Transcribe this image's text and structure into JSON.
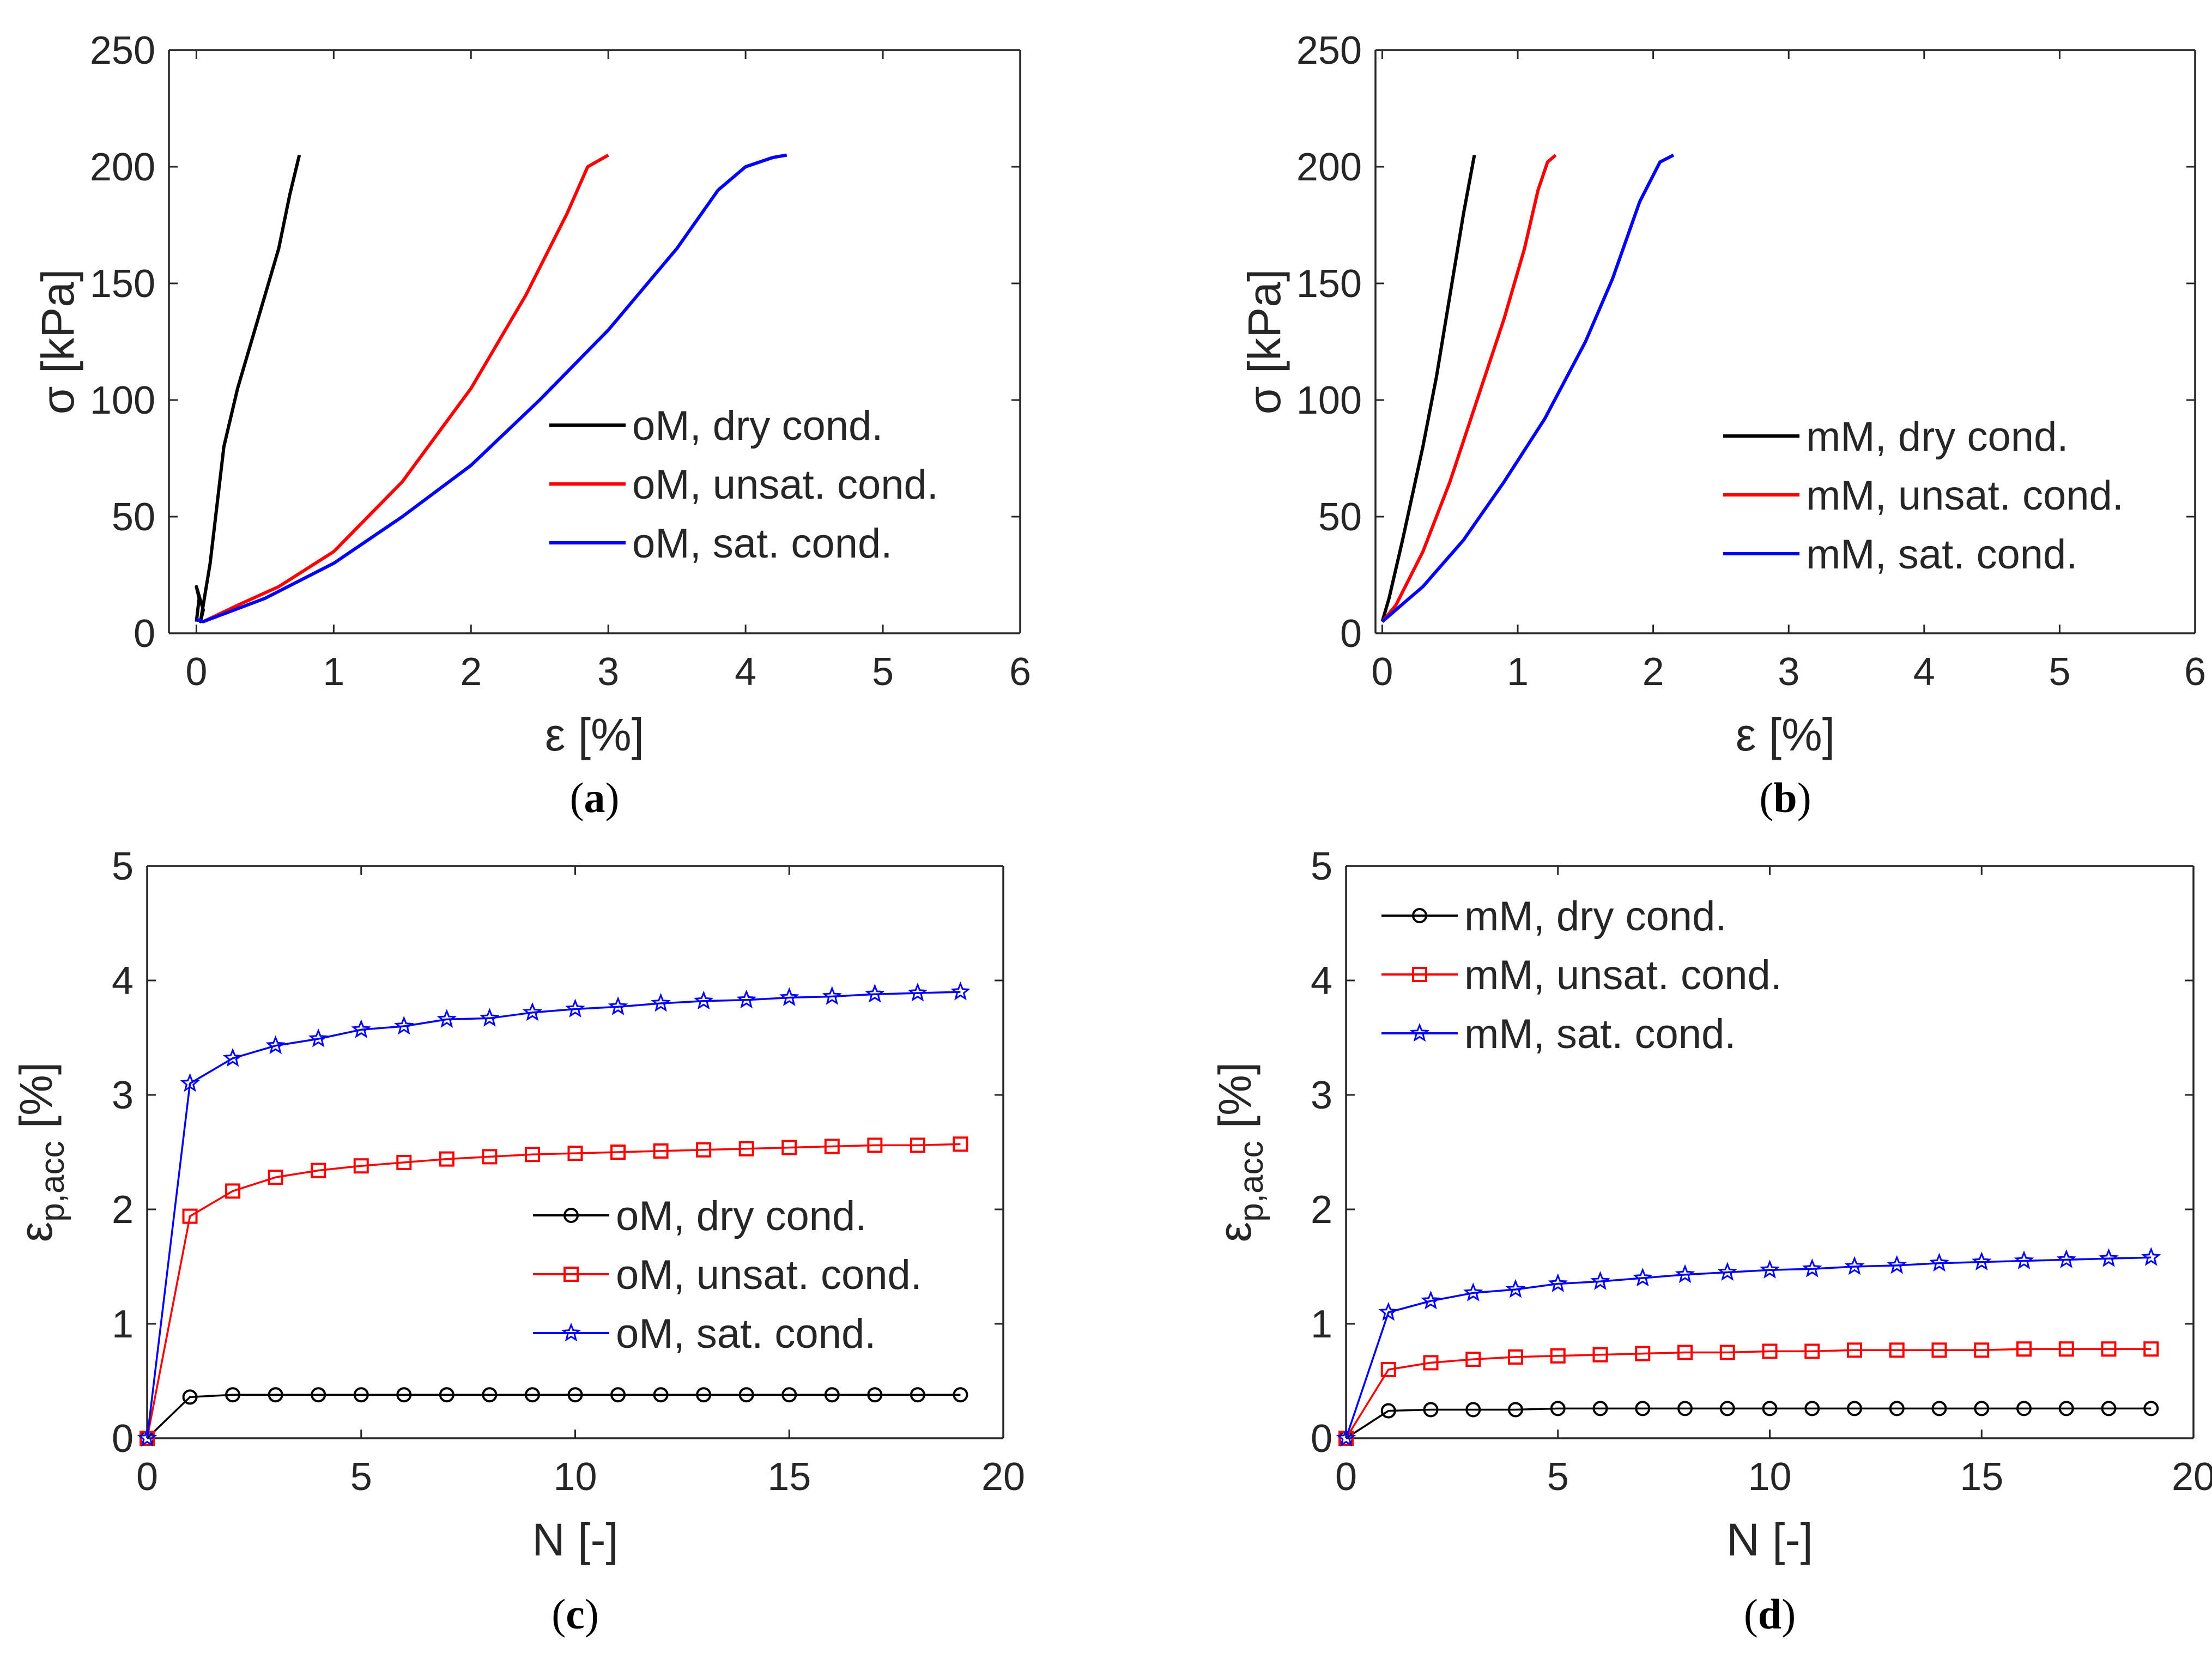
{
  "chart_data": [
    {
      "id": "a",
      "type": "line",
      "caption_letter": "a",
      "xlabel": "ε [%]",
      "ylabel": "σ [kPa]",
      "xlim": [
        -0.2,
        6
      ],
      "ylim": [
        0,
        250
      ],
      "xticks": [
        0,
        1,
        2,
        3,
        4,
        5,
        6
      ],
      "yticks": [
        0,
        50,
        100,
        150,
        200,
        250
      ],
      "legend_position": "right-middle",
      "series": [
        {
          "name": "oM, dry cond.",
          "color": "#000000",
          "marker": "none",
          "x": [
            0.0,
            0.02,
            0.0,
            0.05,
            0.03,
            0.1,
            0.15,
            0.2,
            0.3,
            0.4,
            0.5,
            0.6,
            0.68,
            0.75
          ],
          "y": [
            5,
            15,
            20,
            10,
            5,
            30,
            55,
            80,
            105,
            125,
            145,
            165,
            188,
            205
          ]
        },
        {
          "name": "oM, unsat. cond.",
          "color": "#ff0000",
          "marker": "none",
          "x": [
            0.0,
            0.05,
            0.3,
            0.6,
            1.0,
            1.5,
            2.0,
            2.4,
            2.7,
            2.85,
            3.0
          ],
          "y": [
            6,
            5,
            12,
            20,
            35,
            65,
            105,
            145,
            180,
            200,
            205
          ]
        },
        {
          "name": "oM, sat. cond.",
          "color": "#0000ff",
          "marker": "none",
          "x": [
            0.0,
            0.05,
            0.5,
            1.0,
            1.5,
            2.0,
            2.5,
            3.0,
            3.5,
            3.8,
            4.0,
            4.2,
            4.3
          ],
          "y": [
            6,
            5,
            15,
            30,
            50,
            72,
            100,
            130,
            165,
            190,
            200,
            204,
            205
          ]
        }
      ]
    },
    {
      "id": "b",
      "type": "line",
      "caption_letter": "b",
      "xlabel": "ε [%]",
      "ylabel": "σ [kPa]",
      "xlim": [
        -0.05,
        6
      ],
      "ylim": [
        0,
        250
      ],
      "xticks": [
        0,
        1,
        2,
        3,
        4,
        5,
        6
      ],
      "yticks": [
        0,
        50,
        100,
        150,
        200,
        250
      ],
      "legend_position": "bottom-right",
      "series": [
        {
          "name": "mM, dry cond.",
          "color": "#000000",
          "marker": "none",
          "x": [
            0.0,
            0.05,
            0.15,
            0.3,
            0.4,
            0.5,
            0.6,
            0.68
          ],
          "y": [
            5,
            15,
            40,
            80,
            110,
            145,
            180,
            205
          ]
        },
        {
          "name": "mM, unsat. cond.",
          "color": "#ff0000",
          "marker": "none",
          "x": [
            0.0,
            0.1,
            0.3,
            0.5,
            0.7,
            0.9,
            1.05,
            1.15,
            1.22,
            1.28
          ],
          "y": [
            5,
            12,
            35,
            65,
            100,
            135,
            165,
            190,
            202,
            205
          ]
        },
        {
          "name": "mM, sat. cond.",
          "color": "#0000ff",
          "marker": "none",
          "x": [
            0.0,
            0.3,
            0.6,
            0.9,
            1.2,
            1.5,
            1.7,
            1.9,
            2.05,
            2.15
          ],
          "y": [
            5,
            20,
            40,
            65,
            92,
            125,
            152,
            185,
            202,
            205
          ]
        }
      ]
    },
    {
      "id": "c",
      "type": "line",
      "caption_letter": "c",
      "xlabel": "N [-]",
      "ylabel_main": "ε",
      "ylabel_sub": "p,acc",
      "ylabel_unit": " [%]",
      "xlim": [
        0,
        20
      ],
      "ylim": [
        0,
        5
      ],
      "xticks": [
        0,
        5,
        10,
        15,
        20
      ],
      "yticks": [
        0,
        1,
        2,
        3,
        4,
        5
      ],
      "legend_position": "right-middle",
      "series": [
        {
          "name": "oM, dry cond.",
          "color": "#000000",
          "marker": "circle",
          "x": [
            0,
            1,
            2,
            3,
            4,
            5,
            6,
            7,
            8,
            9,
            10,
            11,
            12,
            13,
            14,
            15,
            16,
            17,
            18,
            19
          ],
          "y": [
            0,
            0.36,
            0.38,
            0.38,
            0.38,
            0.38,
            0.38,
            0.38,
            0.38,
            0.38,
            0.38,
            0.38,
            0.38,
            0.38,
            0.38,
            0.38,
            0.38,
            0.38,
            0.38,
            0.38
          ]
        },
        {
          "name": "oM, unsat. cond.",
          "color": "#ff0000",
          "marker": "square",
          "x": [
            0,
            1,
            2,
            3,
            4,
            5,
            6,
            7,
            8,
            9,
            10,
            11,
            12,
            13,
            14,
            15,
            16,
            17,
            18,
            19
          ],
          "y": [
            0,
            1.94,
            2.16,
            2.28,
            2.34,
            2.38,
            2.41,
            2.44,
            2.46,
            2.48,
            2.49,
            2.5,
            2.51,
            2.52,
            2.53,
            2.54,
            2.55,
            2.56,
            2.56,
            2.57
          ]
        },
        {
          "name": "oM, sat. cond.",
          "color": "#0000ff",
          "marker": "star",
          "x": [
            0,
            1,
            2,
            3,
            4,
            5,
            6,
            7,
            8,
            9,
            10,
            11,
            12,
            13,
            14,
            15,
            16,
            17,
            18,
            19
          ],
          "y": [
            0,
            3.1,
            3.32,
            3.43,
            3.49,
            3.57,
            3.6,
            3.66,
            3.67,
            3.72,
            3.75,
            3.77,
            3.8,
            3.82,
            3.83,
            3.85,
            3.86,
            3.88,
            3.89,
            3.9
          ]
        }
      ]
    },
    {
      "id": "d",
      "type": "line",
      "caption_letter": "d",
      "xlabel": "N [-]",
      "ylabel_main": "ε",
      "ylabel_sub": "p,acc",
      "ylabel_unit": " [%]",
      "xlim": [
        0,
        20
      ],
      "ylim": [
        0,
        5
      ],
      "xticks": [
        0,
        5,
        10,
        15,
        20
      ],
      "yticks": [
        0,
        1,
        2,
        3,
        4,
        5
      ],
      "legend_position": "top-left",
      "series": [
        {
          "name": "mM, dry cond.",
          "color": "#000000",
          "marker": "circle",
          "x": [
            0,
            1,
            2,
            3,
            4,
            5,
            6,
            7,
            8,
            9,
            10,
            11,
            12,
            13,
            14,
            15,
            16,
            17,
            18,
            19
          ],
          "y": [
            0,
            0.24,
            0.25,
            0.25,
            0.25,
            0.26,
            0.26,
            0.26,
            0.26,
            0.26,
            0.26,
            0.26,
            0.26,
            0.26,
            0.26,
            0.26,
            0.26,
            0.26,
            0.26,
            0.26
          ]
        },
        {
          "name": "mM, unsat. cond.",
          "color": "#ff0000",
          "marker": "square",
          "x": [
            0,
            1,
            2,
            3,
            4,
            5,
            6,
            7,
            8,
            9,
            10,
            11,
            12,
            13,
            14,
            15,
            16,
            17,
            18,
            19
          ],
          "y": [
            0,
            0.6,
            0.66,
            0.69,
            0.71,
            0.72,
            0.73,
            0.74,
            0.75,
            0.75,
            0.76,
            0.76,
            0.77,
            0.77,
            0.77,
            0.77,
            0.78,
            0.78,
            0.78,
            0.78
          ]
        },
        {
          "name": "mM, sat. cond.",
          "color": "#0000ff",
          "marker": "star",
          "x": [
            0,
            1,
            2,
            3,
            4,
            5,
            6,
            7,
            8,
            9,
            10,
            11,
            12,
            13,
            14,
            15,
            16,
            17,
            18,
            19
          ],
          "y": [
            0,
            1.1,
            1.2,
            1.27,
            1.3,
            1.35,
            1.37,
            1.4,
            1.43,
            1.45,
            1.47,
            1.48,
            1.5,
            1.51,
            1.53,
            1.54,
            1.55,
            1.56,
            1.57,
            1.58
          ]
        }
      ]
    }
  ]
}
